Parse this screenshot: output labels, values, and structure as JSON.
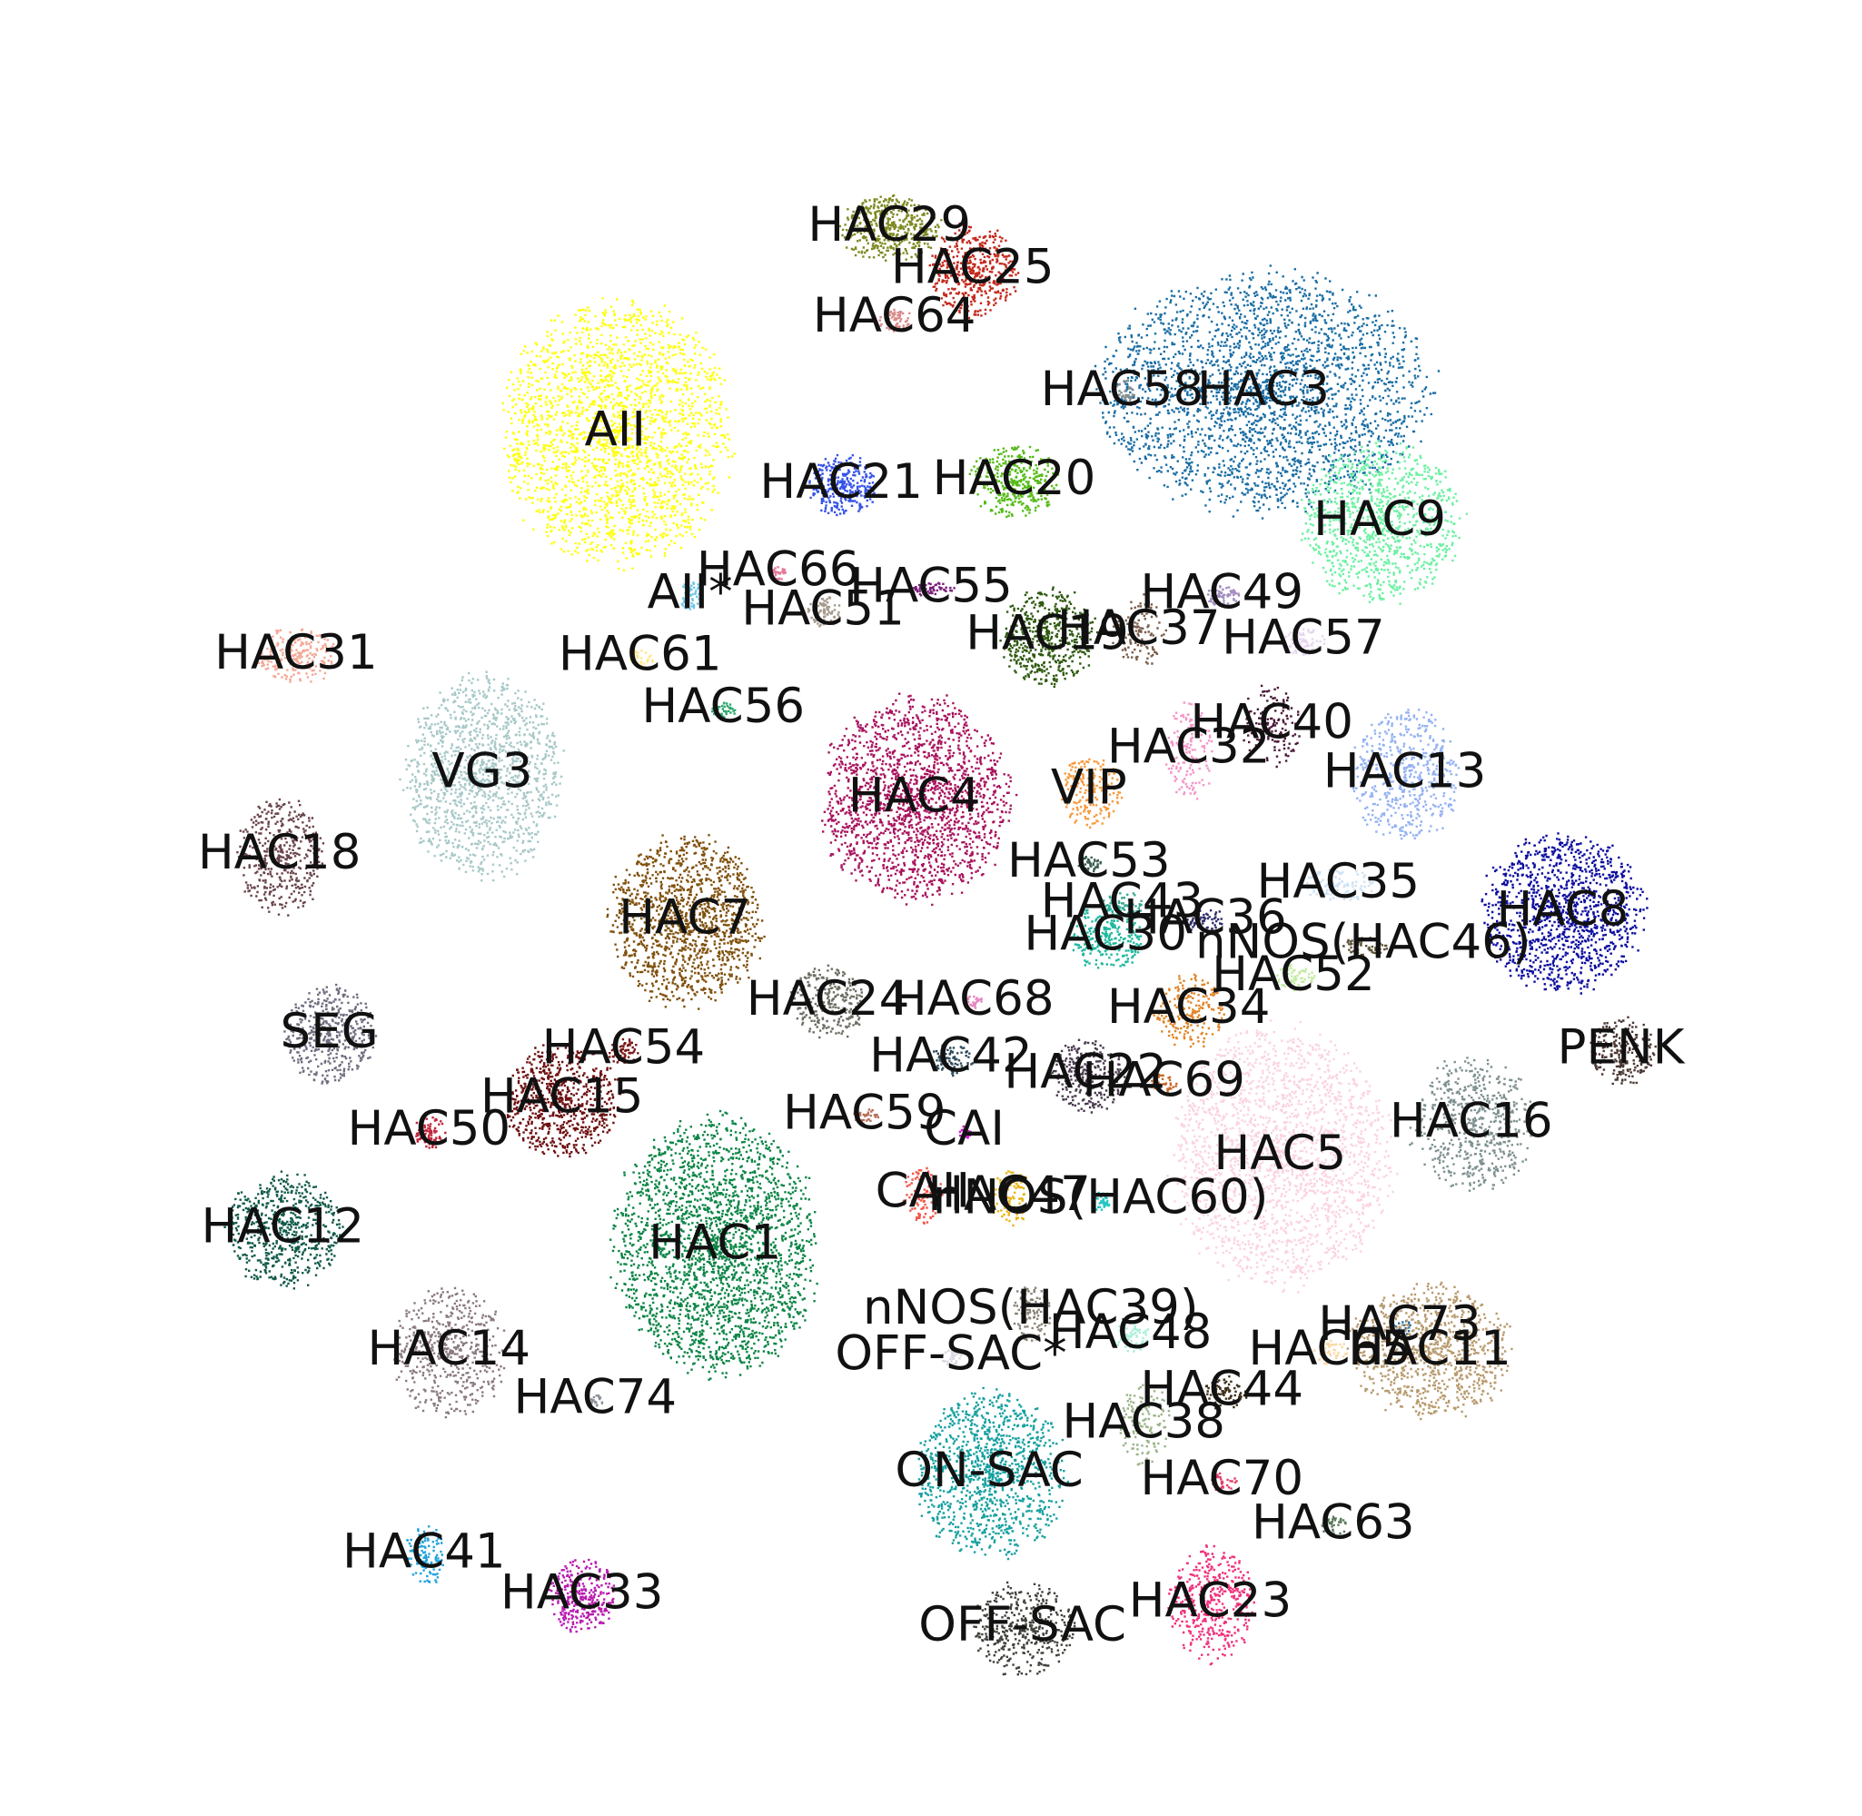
{
  "chart_data": {
    "type": "scatter",
    "title": "",
    "xlabel": "",
    "ylabel": "",
    "grid": false,
    "axes_visible": false,
    "legend": "none",
    "xlim": [
      0,
      1000
    ],
    "ylim": [
      0,
      1000
    ],
    "clusters": [
      {
        "label": "HAC29",
        "color": "#808a22",
        "x": 475,
        "y": 916,
        "sx": 30,
        "sy": 20,
        "n": 450
      },
      {
        "label": "HAC25",
        "color": "#c4281c",
        "x": 525,
        "y": 890,
        "sx": 26,
        "sy": 28,
        "n": 450
      },
      {
        "label": "HAC64",
        "color": "#d98a8a",
        "x": 478,
        "y": 860,
        "sx": 10,
        "sy": 7,
        "n": 60
      },
      {
        "label": "HAC58",
        "color": "#7f8c8d",
        "x": 615,
        "y": 815,
        "sx": 7,
        "sy": 8,
        "n": 50
      },
      {
        "label": "HAC3",
        "color": "#1a6ea5",
        "x": 700,
        "y": 815,
        "sx": 98,
        "sy": 72,
        "n": 2600
      },
      {
        "label": "AII",
        "color": "#ffff0a",
        "x": 310,
        "y": 790,
        "sx": 68,
        "sy": 80,
        "n": 2200
      },
      {
        "label": "HAC9",
        "color": "#6ef0a3",
        "x": 770,
        "y": 735,
        "sx": 48,
        "sy": 48,
        "n": 1000
      },
      {
        "label": "HAC21",
        "color": "#3553e8",
        "x": 446,
        "y": 758,
        "sx": 20,
        "sy": 18,
        "n": 300
      },
      {
        "label": "HAC20",
        "color": "#55bb18",
        "x": 550,
        "y": 760,
        "sx": 26,
        "sy": 22,
        "n": 350
      },
      {
        "label": "HAC66",
        "color": "#e77a98",
        "x": 408,
        "y": 704,
        "sx": 5,
        "sy": 4,
        "n": 30
      },
      {
        "label": "HAC55",
        "color": "#7a1c7a",
        "x": 500,
        "y": 694,
        "sx": 13,
        "sy": 4,
        "n": 60
      },
      {
        "label": "AII*",
        "color": "#6ec6e6",
        "x": 355,
        "y": 690,
        "sx": 6,
        "sy": 10,
        "n": 60
      },
      {
        "label": "HAC51",
        "color": "#a59b8c",
        "x": 435,
        "y": 680,
        "sx": 10,
        "sy": 10,
        "n": 90
      },
      {
        "label": "HAC49",
        "color": "#a38bbf",
        "x": 675,
        "y": 690,
        "sx": 10,
        "sy": 6,
        "n": 60
      },
      {
        "label": "HAC37",
        "color": "#7a5c4a",
        "x": 625,
        "y": 668,
        "sx": 16,
        "sy": 22,
        "n": 120
      },
      {
        "label": "HAC19",
        "color": "#2f5a10",
        "x": 570,
        "y": 665,
        "sx": 28,
        "sy": 30,
        "n": 500
      },
      {
        "label": "HAC57",
        "color": "#e7d6ee",
        "x": 724,
        "y": 662,
        "sx": 12,
        "sy": 10,
        "n": 80
      },
      {
        "label": "HAC61",
        "color": "#ffe88a",
        "x": 325,
        "y": 652,
        "sx": 8,
        "sy": 5,
        "n": 30
      },
      {
        "label": "HAC31",
        "color": "#f4a896",
        "x": 118,
        "y": 653,
        "sx": 24,
        "sy": 17,
        "n": 220
      },
      {
        "label": "HAC56",
        "color": "#2fa86f",
        "x": 375,
        "y": 620,
        "sx": 8,
        "sy": 5,
        "n": 40
      },
      {
        "label": "HAC40",
        "color": "#4a1838",
        "x": 705,
        "y": 610,
        "sx": 18,
        "sy": 25,
        "n": 140
      },
      {
        "label": "HAC32",
        "color": "#f496c8",
        "x": 655,
        "y": 595,
        "sx": 14,
        "sy": 30,
        "n": 160
      },
      {
        "label": "VG3",
        "color": "#a8c8c8",
        "x": 230,
        "y": 580,
        "sx": 46,
        "sy": 62,
        "n": 1300
      },
      {
        "label": "VIP",
        "color": "#f79a3e",
        "x": 595,
        "y": 570,
        "sx": 18,
        "sy": 22,
        "n": 200
      },
      {
        "label": "HAC13",
        "color": "#94b2f2",
        "x": 785,
        "y": 580,
        "sx": 32,
        "sy": 40,
        "n": 520
      },
      {
        "label": "HAC4",
        "color": "#a8135d",
        "x": 490,
        "y": 565,
        "sx": 56,
        "sy": 62,
        "n": 1800
      },
      {
        "label": "HAC18",
        "color": "#6a444a",
        "x": 108,
        "y": 530,
        "sx": 25,
        "sy": 35,
        "n": 420
      },
      {
        "label": "HAC53",
        "color": "#3a5f50",
        "x": 595,
        "y": 525,
        "sx": 7,
        "sy": 5,
        "n": 40
      },
      {
        "label": "HAC35",
        "color": "#cfe2f5",
        "x": 745,
        "y": 512,
        "sx": 22,
        "sy": 10,
        "n": 120
      },
      {
        "label": "HAC8",
        "color": "#0c0ca0",
        "x": 880,
        "y": 495,
        "sx": 48,
        "sy": 48,
        "n": 1200
      },
      {
        "label": "HAC43",
        "color": "#3aa894",
        "x": 615,
        "y": 500,
        "sx": 12,
        "sy": 8,
        "n": 60
      },
      {
        "label": "HAC7",
        "color": "#80510d",
        "x": 352,
        "y": 490,
        "sx": 45,
        "sy": 52,
        "n": 1300
      },
      {
        "label": "HAC36",
        "color": "#2c2a68",
        "x": 665,
        "y": 490,
        "sx": 12,
        "sy": 8,
        "n": 60
      },
      {
        "label": "HAC30",
        "color": "#1fb89e",
        "x": 605,
        "y": 480,
        "sx": 22,
        "sy": 20,
        "n": 260
      },
      {
        "label": "nNOS(HAC46)",
        "color": "#5e5238",
        "x": 760,
        "y": 475,
        "sx": 14,
        "sy": 6,
        "n": 60
      },
      {
        "label": "HAC52",
        "color": "#c2eba0",
        "x": 718,
        "y": 455,
        "sx": 12,
        "sy": 8,
        "n": 60
      },
      {
        "label": "HAC24",
        "color": "#6b6e62",
        "x": 438,
        "y": 440,
        "sx": 22,
        "sy": 22,
        "n": 260
      },
      {
        "label": "HAC68",
        "color": "#e686c0",
        "x": 525,
        "y": 440,
        "sx": 6,
        "sy": 4,
        "n": 30
      },
      {
        "label": "HAC34",
        "color": "#e0862a",
        "x": 655,
        "y": 435,
        "sx": 22,
        "sy": 22,
        "n": 200
      },
      {
        "label": "SEG",
        "color": "#6e6e80",
        "x": 138,
        "y": 420,
        "sx": 26,
        "sy": 30,
        "n": 420
      },
      {
        "label": "PENK",
        "color": "#4a3630",
        "x": 915,
        "y": 410,
        "sx": 20,
        "sy": 20,
        "n": 220
      },
      {
        "label": "HAC54",
        "color": "#7a1818",
        "x": 315,
        "y": 410,
        "sx": 10,
        "sy": 8,
        "n": 60
      },
      {
        "label": "HAC42",
        "color": "#2d4a5a",
        "x": 512,
        "y": 405,
        "sx": 12,
        "sy": 10,
        "n": 80
      },
      {
        "label": "HAC22",
        "color": "#4a3a4e",
        "x": 593,
        "y": 395,
        "sx": 22,
        "sy": 22,
        "n": 260
      },
      {
        "label": "HAC69",
        "color": "#c56a2a",
        "x": 640,
        "y": 390,
        "sx": 8,
        "sy": 6,
        "n": 40
      },
      {
        "label": "HAC15",
        "color": "#6e0f10",
        "x": 278,
        "y": 380,
        "sx": 34,
        "sy": 34,
        "n": 700
      },
      {
        "label": "HAC50",
        "color": "#c0253c",
        "x": 198,
        "y": 360,
        "sx": 9,
        "sy": 10,
        "n": 80
      },
      {
        "label": "HAC59",
        "color": "#b5705a",
        "x": 460,
        "y": 370,
        "sx": 8,
        "sy": 5,
        "n": 40
      },
      {
        "label": "CAI",
        "color": "#c81ec8",
        "x": 520,
        "y": 360,
        "sx": 4,
        "sy": 4,
        "n": 25
      },
      {
        "label": "HAC16",
        "color": "#7e9090",
        "x": 825,
        "y": 365,
        "sx": 36,
        "sy": 40,
        "n": 600
      },
      {
        "label": "HAC5",
        "color": "#fbd3e0",
        "x": 710,
        "y": 345,
        "sx": 65,
        "sy": 78,
        "n": 2000
      },
      {
        "label": "CAII",
        "color": "#f2564a",
        "x": 495,
        "y": 322,
        "sx": 12,
        "sy": 18,
        "n": 100
      },
      {
        "label": "HAC47",
        "color": "#e8b414",
        "x": 547,
        "y": 320,
        "sx": 12,
        "sy": 18,
        "n": 100
      },
      {
        "label": "nNOS(HAC60)",
        "color": "#24c6c2",
        "x": 602,
        "y": 318,
        "sx": 6,
        "sy": 6,
        "n": 40
      },
      {
        "label": "HAC12",
        "color": "#115a4a",
        "x": 110,
        "y": 300,
        "sx": 34,
        "sy": 34,
        "n": 620
      },
      {
        "label": "HAC1",
        "color": "#0b8546",
        "x": 370,
        "y": 290,
        "sx": 60,
        "sy": 78,
        "n": 2400
      },
      {
        "label": "nNOS(HAC39)",
        "color": "#898276",
        "x": 560,
        "y": 250,
        "sx": 12,
        "sy": 18,
        "n": 100
      },
      {
        "label": "HAC48",
        "color": "#a8f0d8",
        "x": 620,
        "y": 235,
        "sx": 10,
        "sy": 10,
        "n": 60
      },
      {
        "label": "HAC73",
        "color": "#2c6ea5",
        "x": 782,
        "y": 240,
        "sx": 6,
        "sy": 6,
        "n": 30
      },
      {
        "label": "HAC65",
        "color": "#fad9a5",
        "x": 740,
        "y": 225,
        "sx": 10,
        "sy": 8,
        "n": 50
      },
      {
        "label": "HAC11",
        "color": "#b89a6e",
        "x": 800,
        "y": 225,
        "sx": 48,
        "sy": 40,
        "n": 900
      },
      {
        "label": "HAC14",
        "color": "#8a7a7e",
        "x": 210,
        "y": 225,
        "sx": 34,
        "sy": 40,
        "n": 520
      },
      {
        "label": "OFF-SAC*",
        "color": "#dad7e2",
        "x": 512,
        "y": 222,
        "sx": 6,
        "sy": 5,
        "n": 30
      },
      {
        "label": "HAC74",
        "color": "#8a8e9a",
        "x": 298,
        "y": 195,
        "sx": 4,
        "sy": 4,
        "n": 20
      },
      {
        "label": "HAC44",
        "color": "#3d3018",
        "x": 675,
        "y": 200,
        "sx": 14,
        "sy": 10,
        "n": 80
      },
      {
        "label": "HAC38",
        "color": "#9bb48a",
        "x": 628,
        "y": 180,
        "sx": 15,
        "sy": 25,
        "n": 140
      },
      {
        "label": "HAC70",
        "color": "#e0406a",
        "x": 675,
        "y": 145,
        "sx": 8,
        "sy": 6,
        "n": 40
      },
      {
        "label": "ON-SAC",
        "color": "#16a0a0",
        "x": 535,
        "y": 150,
        "sx": 45,
        "sy": 50,
        "n": 1100
      },
      {
        "label": "HAC63",
        "color": "#5a7a5a",
        "x": 742,
        "y": 118,
        "sx": 8,
        "sy": 6,
        "n": 40
      },
      {
        "label": "HAC41",
        "color": "#1ea2dc",
        "x": 195,
        "y": 100,
        "sx": 12,
        "sy": 18,
        "n": 120
      },
      {
        "label": "HAC33",
        "color": "#b81ab0",
        "x": 290,
        "y": 75,
        "sx": 20,
        "sy": 22,
        "n": 300
      },
      {
        "label": "OFF-SAC",
        "color": "#40403a",
        "x": 555,
        "y": 55,
        "sx": 30,
        "sy": 28,
        "n": 400
      },
      {
        "label": "HAC23",
        "color": "#f0307c",
        "x": 668,
        "y": 70,
        "sx": 26,
        "sy": 35,
        "n": 420
      }
    ]
  }
}
